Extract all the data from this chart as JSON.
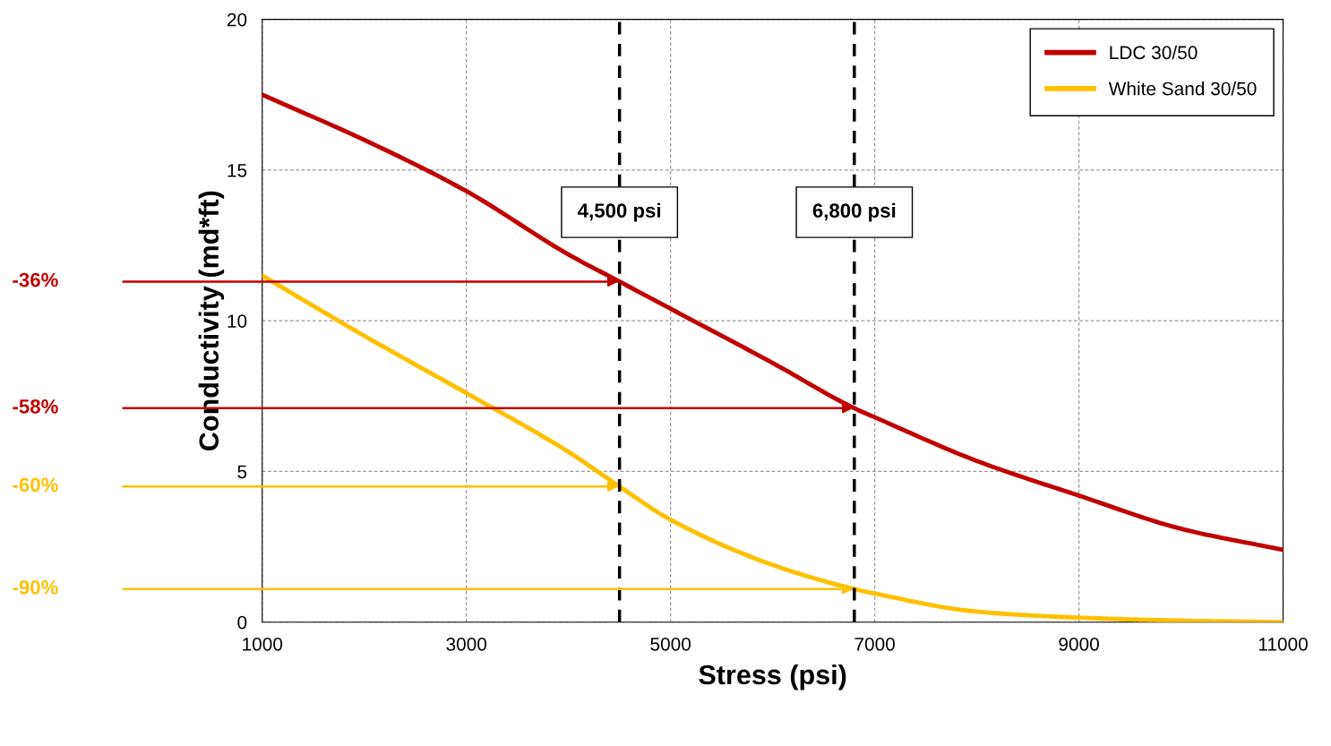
{
  "chart_data": {
    "type": "line",
    "xlabel": "Stress (psi)",
    "ylabel": "Conductivity (md*ft)",
    "x": [
      1000,
      2000,
      3000,
      4000,
      4500,
      5000,
      6000,
      6800,
      7000,
      8000,
      9000,
      10000,
      11000
    ],
    "series": [
      {
        "name": "LDC 30/50",
        "color": "#c00000",
        "values": [
          17.5,
          16.0,
          14.3,
          12.2,
          11.3,
          10.4,
          8.6,
          7.1,
          6.8,
          5.35,
          4.2,
          3.1,
          2.4
        ]
      },
      {
        "name": "White Sand 30/50",
        "color": "#ffc000",
        "values": [
          11.5,
          9.5,
          7.6,
          5.65,
          4.5,
          3.4,
          1.9,
          1.1,
          0.95,
          0.35,
          0.15,
          0.05,
          0.0
        ]
      }
    ],
    "xlim": [
      1000,
      11000
    ],
    "ylim": [
      0,
      20
    ],
    "xticks": [
      1000,
      3000,
      5000,
      7000,
      9000,
      11000
    ],
    "yticks": [
      0,
      5,
      10,
      15,
      20
    ],
    "grid": true,
    "legend": "top right",
    "marker": "none",
    "line_style": "solid",
    "ref_lines": [
      {
        "axis": "x",
        "value": 4500,
        "label": "4,500 psi",
        "color": "#000000",
        "line_style": "dashed"
      },
      {
        "axis": "x",
        "value": 6800,
        "label": "6,800 psi",
        "color": "#000000",
        "line_style": "dashed"
      }
    ],
    "annotations": [
      "-36%",
      "-58%",
      "-60%",
      "-90%"
    ]
  }
}
